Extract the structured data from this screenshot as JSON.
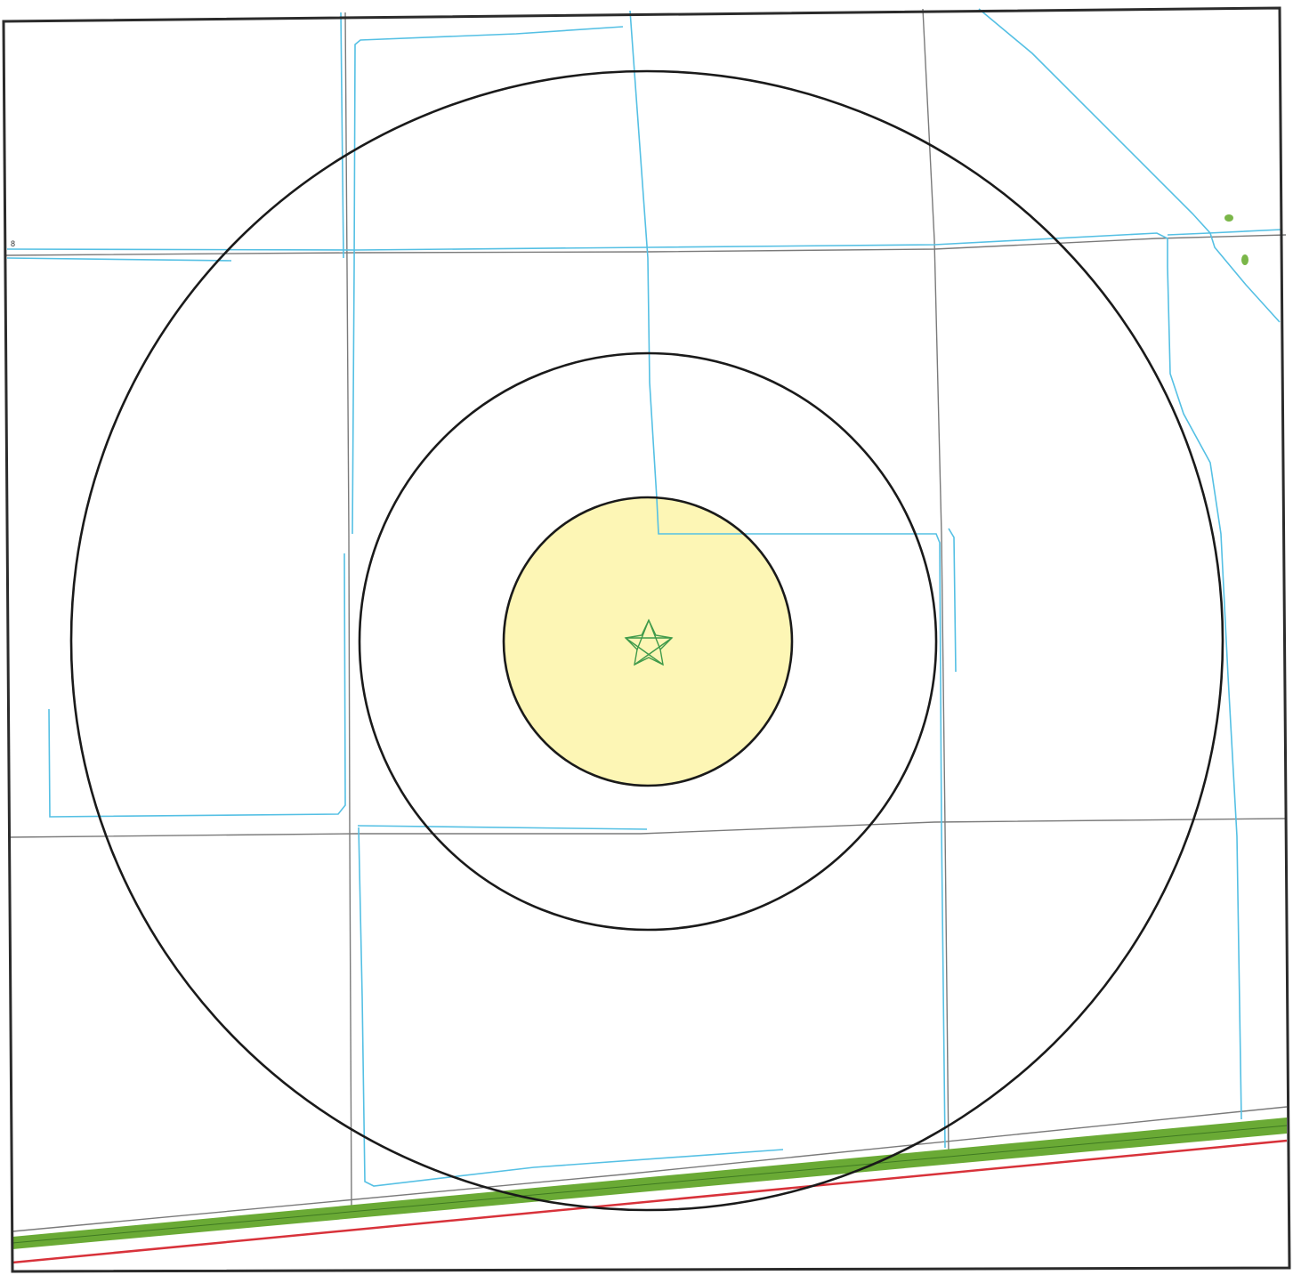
{
  "map": {
    "labels": {
      "road_marker": "8"
    },
    "colors": {
      "background": "#ffffff",
      "frame": "#2b2b2b",
      "ring": "#1a1a1a",
      "buffer_fill": "#fdf5a8",
      "road": "#7a7a7a",
      "water": "#55c0e4",
      "green_strip": "#6aaa35",
      "red_line": "#d8323a",
      "site_star": "#3f9a4a",
      "green_patch": "#7ab648"
    },
    "icons": {
      "site": "star-icon"
    }
  }
}
